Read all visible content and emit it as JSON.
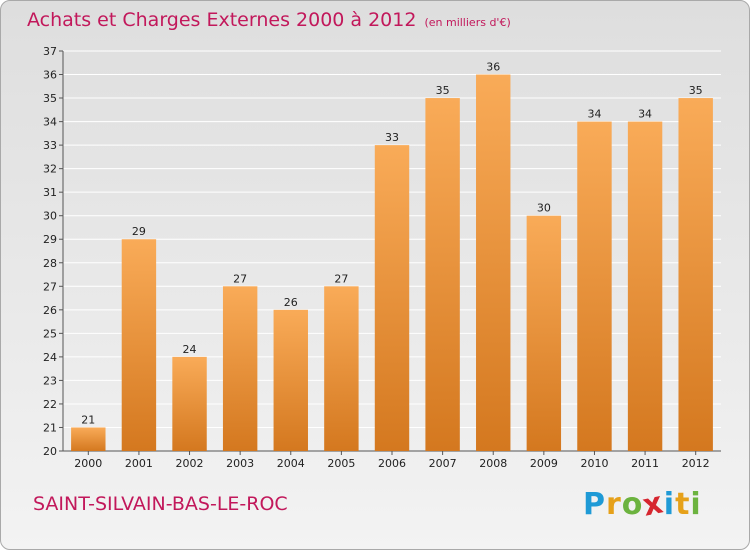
{
  "header": {
    "title": "Achats et Charges Externes 2000 à 2012",
    "unit": "(en milliers d'€)"
  },
  "footer": {
    "commune": "SAINT-SILVAIN-BAS-LE-ROC",
    "logo_letters": [
      "P",
      "r",
      "o",
      "x",
      "i",
      "t",
      "i"
    ],
    "logo_colors": [
      "#1f9ad6",
      "#e6a11a",
      "#6cb33f",
      "#d6262f",
      "#1f9ad6",
      "#e6a11a",
      "#6cb33f"
    ]
  },
  "colors": {
    "bar_light": "#f9ab58",
    "bar_dark": "#d4781f",
    "grid": "#ffffff",
    "title": "#c2185b"
  },
  "chart_data": {
    "type": "bar",
    "categories": [
      "2000",
      "2001",
      "2002",
      "2003",
      "2004",
      "2005",
      "2006",
      "2007",
      "2008",
      "2009",
      "2010",
      "2011",
      "2012"
    ],
    "values": [
      21,
      29,
      24,
      27,
      26,
      27,
      33,
      35,
      36,
      30,
      34,
      34,
      35
    ],
    "ylim": [
      20,
      37
    ],
    "yticks": [
      20,
      21,
      22,
      23,
      24,
      25,
      26,
      27,
      28,
      29,
      30,
      31,
      32,
      33,
      34,
      35,
      36,
      37
    ],
    "grid": true
  }
}
